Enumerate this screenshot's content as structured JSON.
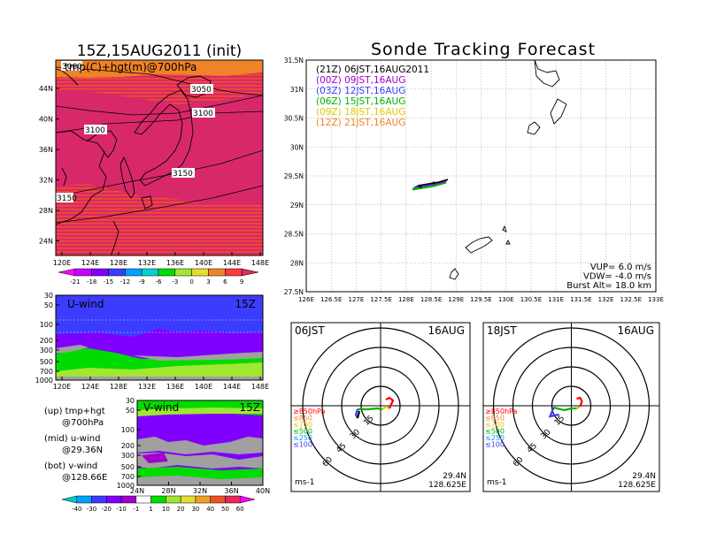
{
  "left_title": "15Z,15AUG2011 (init)",
  "right_title": "Sonde Tracking Forecast",
  "map_panel": {
    "label": "tmp(C)+hgt(m)@700hPa",
    "lat_ticks": [
      "44N",
      "40N",
      "36N",
      "32N",
      "28N",
      "24N"
    ],
    "lon_ticks": [
      "120E",
      "124E",
      "128E",
      "132E",
      "136E",
      "140E",
      "144E",
      "148E"
    ],
    "contours": [
      "3060",
      "3050",
      "3100",
      "3100",
      "3150",
      "3150"
    ]
  },
  "temp_colorbar": {
    "labels": [
      "-21",
      "-18",
      "-15",
      "-12",
      "-9",
      "-6",
      "-3",
      "0",
      "3",
      "6",
      "9"
    ],
    "colors": [
      "#ff00ff",
      "#c800ff",
      "#8000ff",
      "#3c3cff",
      "#00a0ff",
      "#00d2d2",
      "#00dc00",
      "#a0e632",
      "#e6dc32",
      "#f08228",
      "#fa3c3c",
      "#e6285a"
    ]
  },
  "uwind_panel": {
    "label": "U-wind",
    "time": "15Z",
    "p_ticks": [
      "30",
      "50",
      "100",
      "200",
      "300",
      "500",
      "700",
      "1000"
    ],
    "lon_ticks": [
      "120E",
      "124E",
      "128E",
      "132E",
      "136E",
      "140E",
      "144E",
      "148E"
    ]
  },
  "vwind_panel": {
    "label": "V-wind",
    "time": "15Z",
    "p_ticks": [
      "30",
      "50",
      "100",
      "200",
      "300",
      "500",
      "700",
      "1000"
    ],
    "lat_ticks": [
      "24N",
      "28N",
      "32N",
      "36N",
      "40N"
    ]
  },
  "notes": [
    {
      "line1": "(up) tmp+hgt",
      "line2": "@700hPa"
    },
    {
      "line1": "(mid) u-wind",
      "line2": "@29.36N"
    },
    {
      "line1": "(bot) v-wind",
      "line2": "@128.66E"
    }
  ],
  "wind_colorbar": {
    "labels": [
      "-40",
      "-30",
      "-20",
      "-10",
      "-1",
      "1",
      "10",
      "20",
      "30",
      "40",
      "50",
      "60"
    ],
    "colors": [
      "#00c8c8",
      "#00a0ff",
      "#3c3cff",
      "#8000ff",
      "#a000c8",
      "#ffffff",
      "#00dc00",
      "#a0e632",
      "#e6dc32",
      "#f0a028",
      "#f05028",
      "#e6285a",
      "#ff00ff"
    ]
  },
  "track_panel": {
    "lat_ticks": [
      "31.5N",
      "31N",
      "30.5N",
      "30N",
      "29.5N",
      "29N",
      "28.5N",
      "28N",
      "27.5N"
    ],
    "lon_ticks": [
      "126E",
      "126.5E",
      "127E",
      "127.5E",
      "128E",
      "128.5E",
      "129E",
      "129.5E",
      "130E",
      "130.5E",
      "131E",
      "131.5E",
      "132E",
      "132.5E",
      "133E"
    ],
    "legend": [
      {
        "text": "(21Z) 06JST,16AUG2011",
        "color": "#000000"
      },
      {
        "text": "(00Z) 09JST,16AUG",
        "color": "#a000c8"
      },
      {
        "text": "(03Z) 12JST,16AUG",
        "color": "#3c3cff"
      },
      {
        "text": "(06Z) 15JST,16AUG",
        "color": "#00b400"
      },
      {
        "text": "(09Z) 18JST,16AUG",
        "color": "#e6c800"
      },
      {
        "text": "(12Z) 21JST,16AUG",
        "color": "#f08228"
      }
    ],
    "params": [
      "VUP= 6.0 m/s",
      "VDW= -4.0 m/s",
      "Burst Alt= 18.0 km"
    ]
  },
  "hodo_left": {
    "time": "06JST",
    "date": "16AUG",
    "levels": [
      "≥850hPa",
      "≤850",
      "≤700",
      "≤500",
      "≤250",
      "≤100"
    ],
    "level_colors": [
      "#ff0000",
      "#f08228",
      "#e6c800",
      "#00b400",
      "#00a0ff",
      "#3c3cff"
    ],
    "ring_labels": [
      "15",
      "30",
      "45",
      "60"
    ],
    "unit": "ms-1",
    "lat": "29.4N",
    "lon": "128.625E"
  },
  "hodo_right": {
    "time": "18JST",
    "date": "16AUG",
    "levels": [
      "≥850hPa",
      "≤850",
      "≤700",
      "≤500",
      "≤250",
      "≤100"
    ],
    "level_colors": [
      "#ff0000",
      "#f08228",
      "#e6c800",
      "#00b400",
      "#00a0ff",
      "#3c3cff"
    ],
    "ring_labels": [
      "15",
      "30",
      "45",
      "60"
    ],
    "unit": "ms-1",
    "lat": "29.4N",
    "lon": "128.625E"
  }
}
